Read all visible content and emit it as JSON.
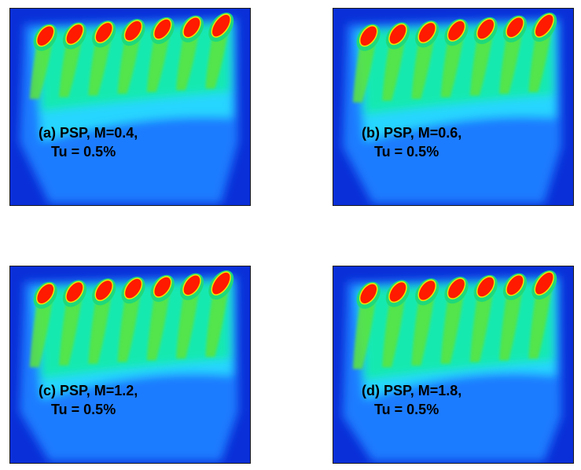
{
  "panels": [
    {
      "line1": "(a) PSP, M=0.4,",
      "line2": "Tu = 0.5%",
      "variant": "a"
    },
    {
      "line1": "(b) PSP, M=0.6,",
      "line2": "Tu = 0.5%",
      "variant": "b"
    },
    {
      "line1": "(c) PSP, M=1.2,",
      "line2": "Tu = 0.5%",
      "variant": "c"
    },
    {
      "line1": "(d) PSP, M=1.8,",
      "line2": "Tu = 0.5%",
      "variant": "d"
    }
  ],
  "colormap": [
    "#0a2fd8",
    "#1a7bff",
    "#27d6ff",
    "#14e9b0",
    "#1fd97a",
    "#5de43a",
    "#ff1a00"
  ]
}
